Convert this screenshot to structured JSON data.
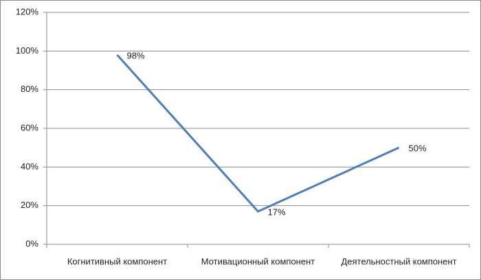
{
  "chart_data": {
    "type": "line",
    "categories": [
      "Когнитивный компонент",
      "Мотивационный компонент",
      "Деятельностный компонент"
    ],
    "series": [
      {
        "color": "#4a7ebb",
        "values": [
          98,
          17,
          50
        ],
        "value_labels": [
          "98%",
          "17%",
          "50%"
        ]
      }
    ],
    "ylim": [
      0,
      120
    ],
    "yticks": [
      {
        "value": 0,
        "label": "0%"
      },
      {
        "value": 20,
        "label": "20%"
      },
      {
        "value": 40,
        "label": "40%"
      },
      {
        "value": 60,
        "label": "60%"
      },
      {
        "value": 80,
        "label": "80%"
      },
      {
        "value": 100,
        "label": "100%"
      },
      {
        "value": 120,
        "label": "120%"
      }
    ],
    "grid": true
  }
}
